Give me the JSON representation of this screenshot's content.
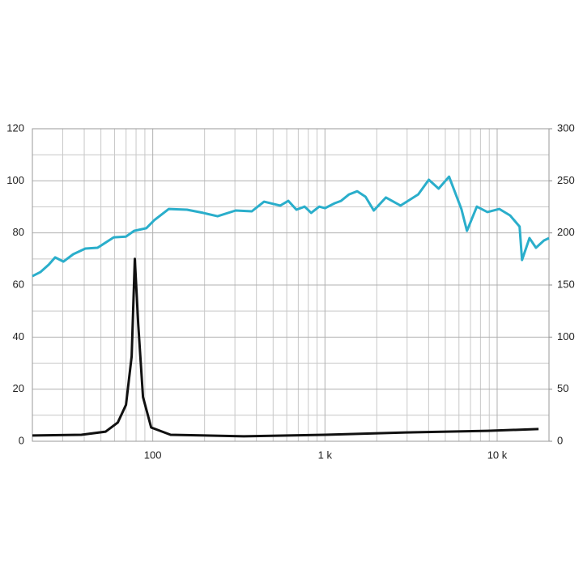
{
  "chart_data": {
    "type": "line",
    "x": [
      20,
      22.3,
      24.9,
      27.1,
      30.3,
      34.5,
      40.6,
      47.8,
      59.4,
      69.9,
      77.9,
      91.7,
      102,
      124,
      158,
      196,
      238,
      303,
      376,
      443,
      550,
      613,
      683,
      762,
      832,
      926,
      1000,
      1140,
      1240,
      1380,
      1540,
      1720,
      1920,
      2260,
      2750,
      3480,
      4010,
      4570,
      5260,
      6200,
      6680,
      7620,
      8780,
      10300,
      11900,
      13500,
      13950,
      15400,
      16800,
      18700,
      20000
    ],
    "series": [
      {
        "color": "#2aaecb",
        "values": [
          63.4,
          65,
          67.8,
          70.6,
          69,
          71.8,
          74,
          74.3,
          78.3,
          78.6,
          80.8,
          81.8,
          84.9,
          89.2,
          88.9,
          87.7,
          86.4,
          88.6,
          88.3,
          92,
          90.5,
          92.3,
          88.9,
          90.1,
          87.7,
          90.1,
          89.5,
          91.4,
          92.3,
          94.8,
          96,
          93.9,
          88.6,
          93.6,
          90.5,
          94.8,
          100.4,
          97,
          101.6,
          89.2,
          80.8,
          90.1,
          88,
          89.2,
          86.7,
          82.4,
          69.6,
          78,
          74.3,
          77.1,
          78
        ]
      }
    ],
    "impedance": {
      "color": "#111111",
      "x": [
        20,
        38.5,
        53.3,
        62.7,
        69.9,
        75.4,
        78.7,
        82.3,
        87.8,
        97.9,
        127,
        338,
        1000,
        2960,
        8780,
        17400
      ],
      "values": [
        2.2,
        2.5,
        3.7,
        7.2,
        14,
        32.6,
        70,
        45,
        17,
        5.3,
        2.5,
        1.9,
        2.5,
        3.4,
        4,
        4.7
      ]
    },
    "xlim": [
      20,
      20000
    ],
    "log_x": true,
    "xticks": [
      100,
      {
        "value": 1000,
        "label": "1 k"
      },
      {
        "value": 10000,
        "label": "10 k"
      }
    ],
    "x_minor_grid": [
      20,
      30,
      40,
      50,
      60,
      70,
      80,
      90,
      200,
      300,
      400,
      500,
      600,
      700,
      800,
      900,
      2000,
      3000,
      4000,
      5000,
      6000,
      7000,
      8000,
      9000,
      20000
    ],
    "ylim": [
      0,
      120
    ],
    "yticks": [
      0,
      20,
      40,
      60,
      80,
      100,
      120
    ],
    "y_minor_grid": [
      10,
      30,
      50,
      70,
      90,
      110
    ],
    "y2lim": [
      0,
      300
    ],
    "y2ticks": [
      0,
      50,
      100,
      150,
      200,
      250,
      300
    ],
    "grid": true
  }
}
